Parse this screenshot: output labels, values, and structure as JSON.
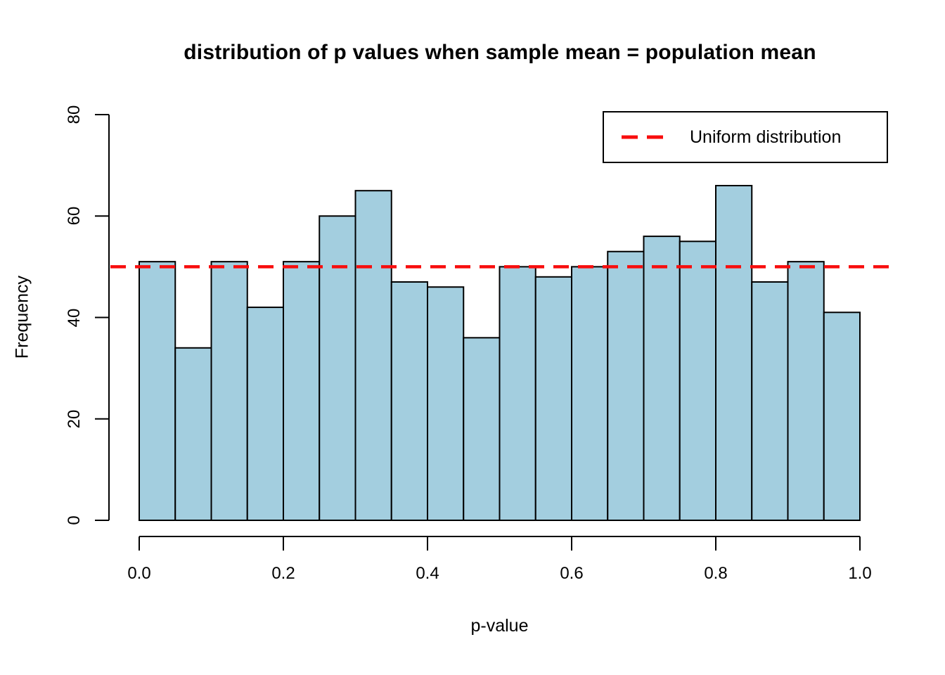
{
  "colors": {
    "background": "#FFFFFF",
    "bar_fill": "#A3CEDF",
    "bar_stroke": "#000000",
    "axis": "#000000",
    "text": "#000000",
    "reference_line": "#F80D0D"
  },
  "legend": {
    "position": "top-right",
    "entries": [
      {
        "label": "Uniform distribution",
        "marker": "dashed-line",
        "color": "#F80D0D"
      }
    ]
  },
  "chart_data": {
    "type": "bar",
    "subtype": "histogram",
    "title": "distribution of p values when sample mean = population mean",
    "xlabel": "p-value",
    "ylabel": "Frequency",
    "bin_start": 0,
    "bin_width": 0.05,
    "values": [
      51,
      34,
      51,
      42,
      51,
      60,
      65,
      47,
      46,
      36,
      50,
      48,
      50,
      53,
      56,
      55,
      66,
      47,
      51,
      41
    ],
    "xlim": [
      0,
      1
    ],
    "ylim": [
      0,
      80
    ],
    "x_ticks": [
      0,
      0.2,
      0.4,
      0.6,
      0.8,
      1
    ],
    "x_tick_labels": [
      "0.0",
      "0.2",
      "0.4",
      "0.6",
      "0.8",
      "1.0"
    ],
    "y_ticks": [
      0,
      20,
      40,
      60,
      80
    ],
    "y_tick_labels": [
      "0",
      "20",
      "40",
      "60",
      "80"
    ],
    "grid": false,
    "legend_position": "top-right",
    "reference_line": {
      "y": 50,
      "label": "Uniform distribution",
      "style": "dashed",
      "color": "#F80D0D"
    }
  }
}
